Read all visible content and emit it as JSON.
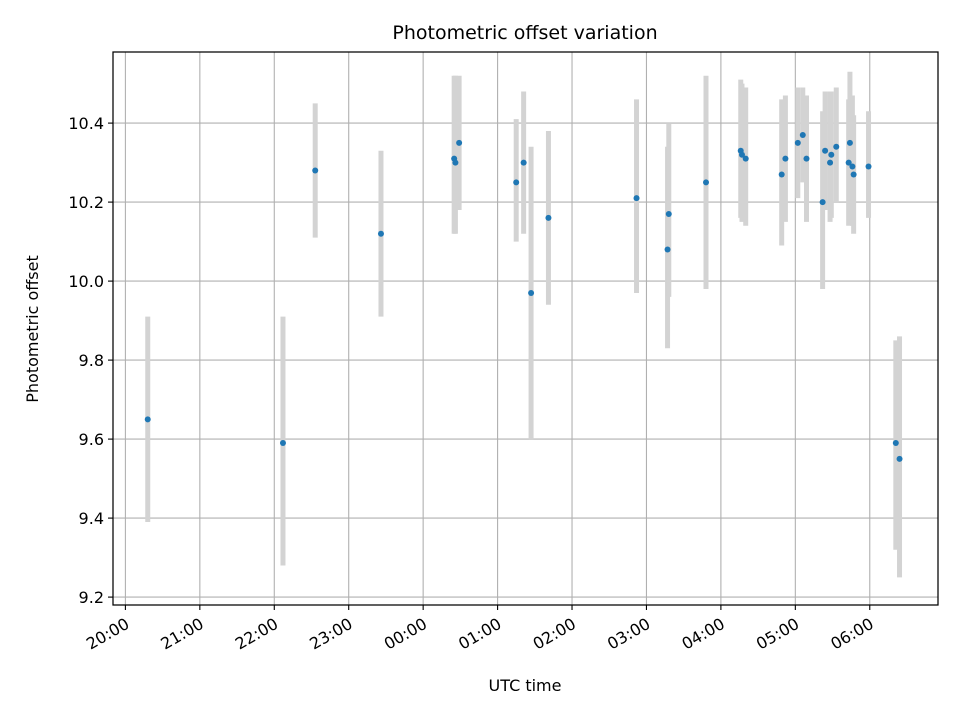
{
  "chart_data": {
    "type": "scatter",
    "title": "Photometric offset variation",
    "xlabel": "UTC time",
    "ylabel": "Photometric offset",
    "x_axis_type": "time",
    "xlim": [
      "19:50",
      "06:55"
    ],
    "ylim": [
      9.18,
      10.58
    ],
    "x_ticks": [
      "20:00",
      "21:00",
      "22:00",
      "23:00",
      "00:00",
      "01:00",
      "02:00",
      "03:00",
      "04:00",
      "05:00",
      "06:00"
    ],
    "y_ticks": [
      "9.2",
      "9.4",
      "9.6",
      "9.8",
      "10.0",
      "10.2",
      "10.4"
    ],
    "grid": true,
    "colors": {
      "point": "#1f77b4",
      "errorbar": "#d3d3d3",
      "grid": "#b0b0b0"
    },
    "points": [
      {
        "x": "20:18",
        "y": 9.65,
        "ylow": 9.39,
        "yhigh": 9.91
      },
      {
        "x": "22:07",
        "y": 9.59,
        "ylow": 9.28,
        "yhigh": 9.91
      },
      {
        "x": "22:33",
        "y": 10.28,
        "ylow": 10.11,
        "yhigh": 10.45
      },
      {
        "x": "23:26",
        "y": 10.12,
        "ylow": 9.91,
        "yhigh": 10.33
      },
      {
        "x": "00:25",
        "y": 10.31,
        "ylow": 10.12,
        "yhigh": 10.52
      },
      {
        "x": "00:26",
        "y": 10.3,
        "ylow": 10.12,
        "yhigh": 10.52
      },
      {
        "x": "00:29",
        "y": 10.35,
        "ylow": 10.18,
        "yhigh": 10.52
      },
      {
        "x": "01:15",
        "y": 10.25,
        "ylow": 10.1,
        "yhigh": 10.41
      },
      {
        "x": "01:21",
        "y": 10.3,
        "ylow": 10.12,
        "yhigh": 10.48
      },
      {
        "x": "01:27",
        "y": 9.97,
        "ylow": 9.6,
        "yhigh": 10.34
      },
      {
        "x": "01:41",
        "y": 10.16,
        "ylow": 9.94,
        "yhigh": 10.38
      },
      {
        "x": "02:52",
        "y": 10.21,
        "ylow": 9.97,
        "yhigh": 10.46
      },
      {
        "x": "03:17",
        "y": 10.08,
        "ylow": 9.83,
        "yhigh": 10.34
      },
      {
        "x": "03:18",
        "y": 10.17,
        "ylow": 9.96,
        "yhigh": 10.4
      },
      {
        "x": "03:48",
        "y": 10.25,
        "ylow": 9.98,
        "yhigh": 10.52
      },
      {
        "x": "04:16",
        "y": 10.33,
        "ylow": 10.16,
        "yhigh": 10.51
      },
      {
        "x": "04:17",
        "y": 10.32,
        "ylow": 10.15,
        "yhigh": 10.5
      },
      {
        "x": "04:20",
        "y": 10.31,
        "ylow": 10.14,
        "yhigh": 10.49
      },
      {
        "x": "04:49",
        "y": 10.27,
        "ylow": 10.09,
        "yhigh": 10.46
      },
      {
        "x": "04:52",
        "y": 10.31,
        "ylow": 10.15,
        "yhigh": 10.47
      },
      {
        "x": "05:02",
        "y": 10.35,
        "ylow": 10.21,
        "yhigh": 10.49
      },
      {
        "x": "05:06",
        "y": 10.37,
        "ylow": 10.25,
        "yhigh": 10.49
      },
      {
        "x": "05:09",
        "y": 10.31,
        "ylow": 10.15,
        "yhigh": 10.47
      },
      {
        "x": "05:22",
        "y": 10.2,
        "ylow": 9.98,
        "yhigh": 10.43
      },
      {
        "x": "05:24",
        "y": 10.33,
        "ylow": 10.18,
        "yhigh": 10.48
      },
      {
        "x": "05:28",
        "y": 10.3,
        "ylow": 10.15,
        "yhigh": 10.48
      },
      {
        "x": "05:29",
        "y": 10.32,
        "ylow": 10.16,
        "yhigh": 10.48
      },
      {
        "x": "05:33",
        "y": 10.34,
        "ylow": 10.2,
        "yhigh": 10.49
      },
      {
        "x": "05:43",
        "y": 10.3,
        "ylow": 10.14,
        "yhigh": 10.46
      },
      {
        "x": "05:44",
        "y": 10.35,
        "ylow": 10.17,
        "yhigh": 10.53
      },
      {
        "x": "05:46",
        "y": 10.29,
        "ylow": 10.14,
        "yhigh": 10.47
      },
      {
        "x": "05:47",
        "y": 10.27,
        "ylow": 10.12,
        "yhigh": 10.42
      },
      {
        "x": "05:59",
        "y": 10.29,
        "ylow": 10.16,
        "yhigh": 10.43
      },
      {
        "x": "06:21",
        "y": 9.59,
        "ylow": 9.32,
        "yhigh": 9.85
      },
      {
        "x": "06:24",
        "y": 9.55,
        "ylow": 9.25,
        "yhigh": 9.86
      }
    ]
  }
}
